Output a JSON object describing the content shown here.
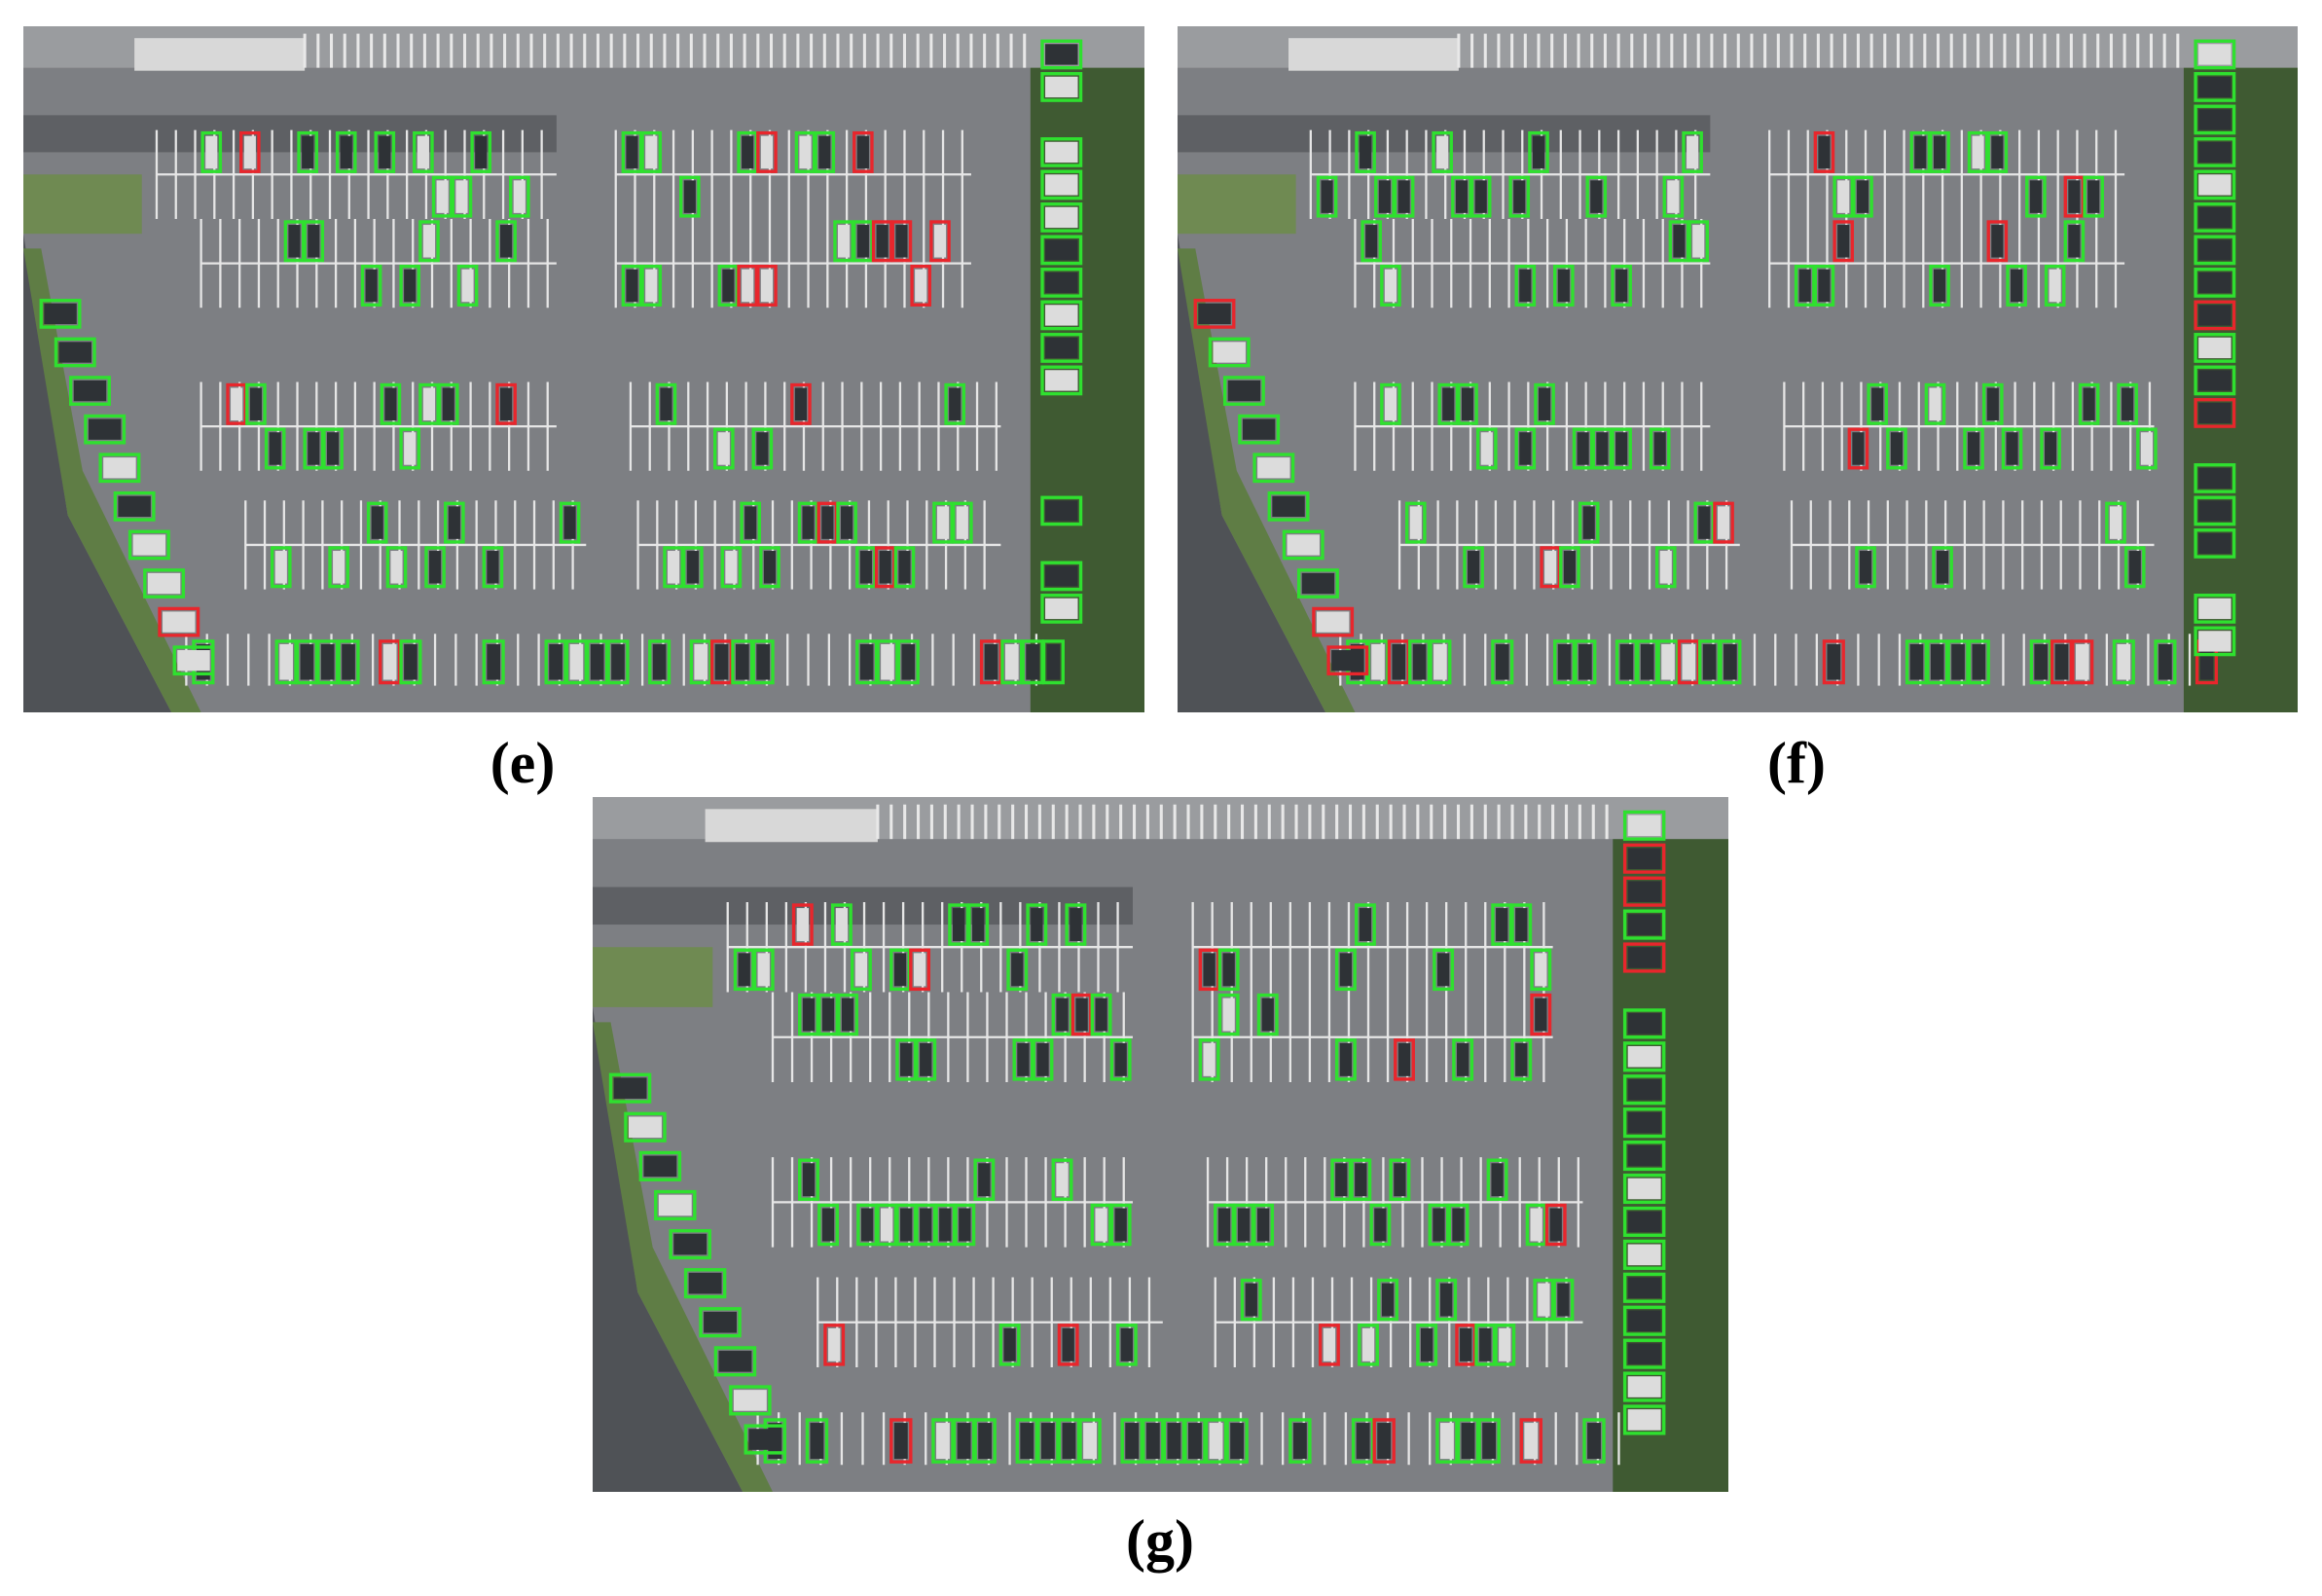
{
  "panels": [
    {
      "label": "(e)"
    },
    {
      "label": "(f)"
    },
    {
      "label": "(g)"
    }
  ]
}
